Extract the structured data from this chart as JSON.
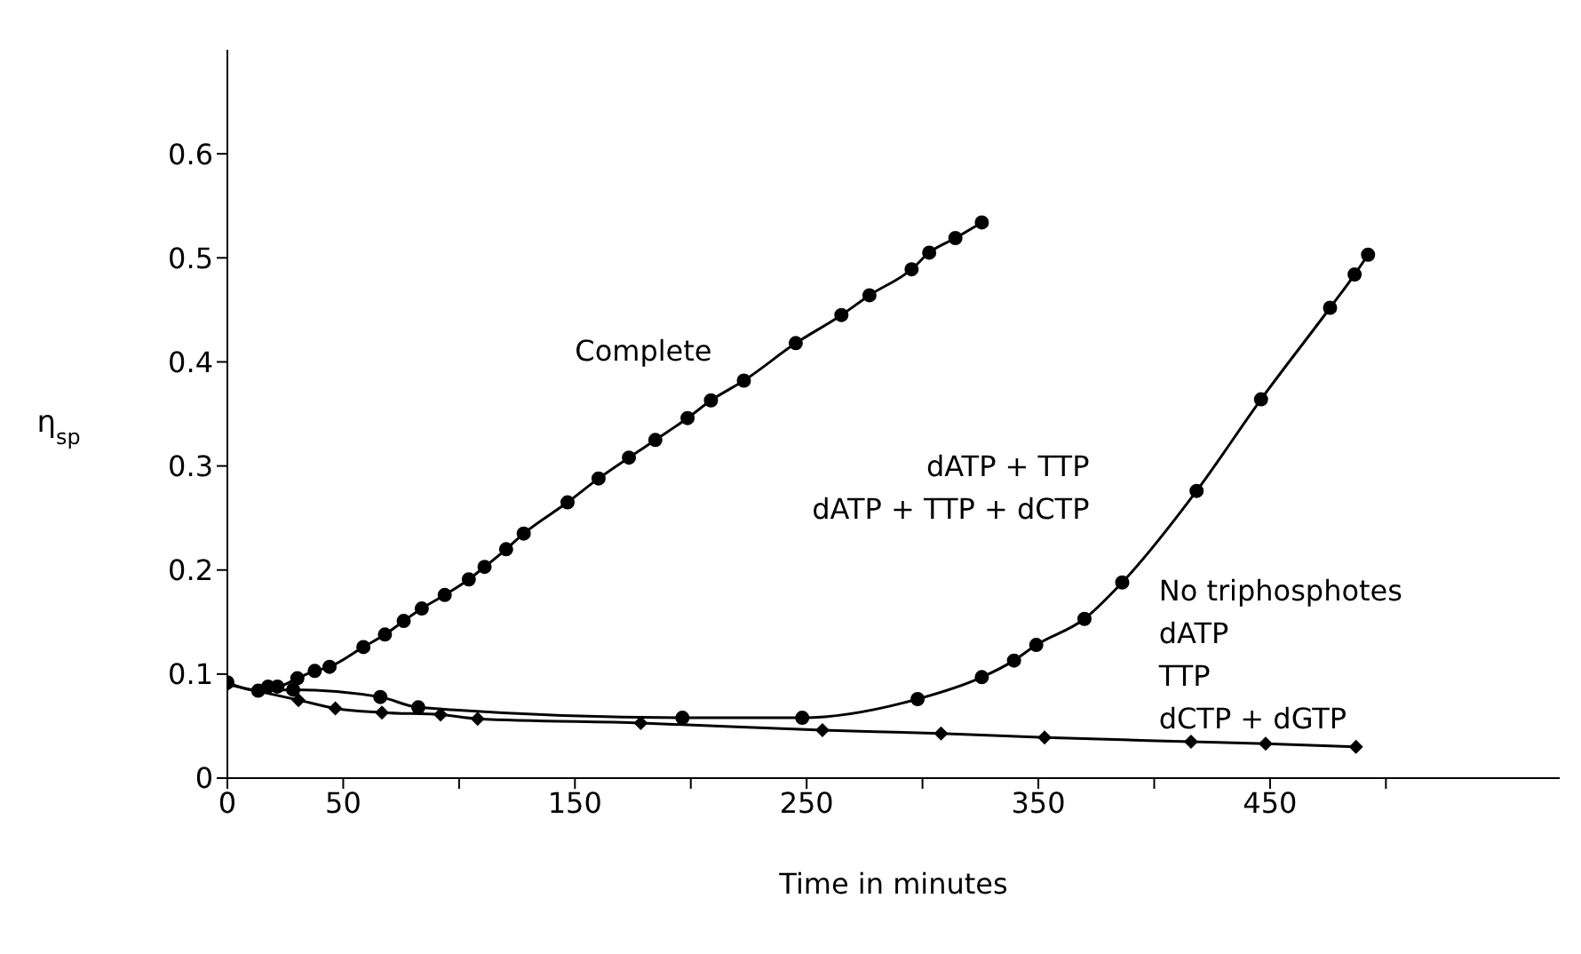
{
  "chart_data": {
    "type": "line",
    "xlabel": "Time in minutes",
    "ylabel": "η$_{sp}$",
    "xlim": [
      0,
      575
    ],
    "ylim": [
      0,
      0.7
    ],
    "xticks": [
      0,
      50,
      {
        "value": 100,
        "label": null
      },
      150,
      {
        "value": 200,
        "label": null
      },
      250,
      {
        "value": 300,
        "label": null
      },
      350,
      {
        "value": 400,
        "label": null
      },
      450,
      {
        "value": 500,
        "label": null
      }
    ],
    "yticks": [
      0,
      0.1,
      0.2,
      0.3,
      0.4,
      0.5,
      0.6
    ],
    "line_style": "solid",
    "series": [
      {
        "name": "Complete",
        "color": "#000000",
        "marker": "circle",
        "x": [
          17.6,
          21.6,
          30.2,
          37.7,
          44.1,
          58.7,
          68,
          76.1,
          83.9,
          93.8,
          104.2,
          111,
          120.3,
          127.9,
          146.8,
          160.2,
          173.3,
          184.7,
          198.6,
          208.7,
          222.9,
          245.3,
          265,
          277.1,
          295.3,
          302.9,
          314.2,
          325.6
        ],
        "values": [
          0.088,
          0.088,
          0.096,
          0.103,
          0.107,
          0.126,
          0.138,
          0.151,
          0.163,
          0.176,
          0.191,
          0.203,
          0.22,
          0.235,
          0.265,
          0.288,
          0.308,
          0.325,
          0.346,
          0.363,
          0.382,
          0.418,
          0.445,
          0.464,
          0.489,
          0.505,
          0.519,
          0.534
        ]
      },
      {
        "name": "dATP + TTP\ndATP + TTP + dCTP",
        "color": "#000000",
        "marker": "circle",
        "x": [
          0,
          13.3,
          28.4,
          66,
          82.4,
          196.4,
          248.1,
          297.9,
          325.6,
          339.5,
          349.1,
          369.9,
          386.2,
          418.3,
          446.1,
          475.9,
          486.5,
          492.3
        ],
        "values": [
          0.092,
          0.084,
          0.085,
          0.078,
          0.068,
          0.058,
          0.058,
          0.076,
          0.097,
          0.113,
          0.128,
          0.153,
          0.188,
          0.276,
          0.364,
          0.452,
          0.484,
          0.503
        ]
      },
      {
        "name": "No triphosphotes\ndATP\nTTP\ndCTP + dGTP",
        "color": "#000000",
        "marker": "diamond",
        "x": [
          0,
          30.7,
          46.6,
          66.7,
          92,
          108,
          178.4,
          256.8,
          308,
          352.7,
          415.9,
          448.1,
          487.1
        ],
        "values": [
          0.09,
          0.075,
          0.067,
          0.063,
          0.061,
          0.057,
          0.053,
          0.046,
          0.043,
          0.039,
          0.035,
          0.033,
          0.03
        ]
      }
    ]
  }
}
